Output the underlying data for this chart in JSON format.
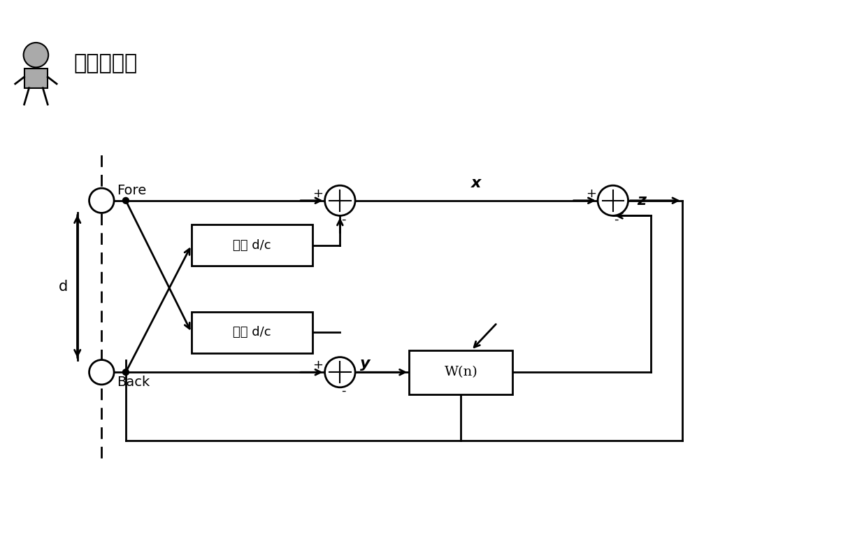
{
  "title": "目标说话人",
  "bg_color": "#ffffff",
  "line_color": "#000000",
  "box_fill": "#ffffff",
  "dashed_line_color": "#000000",
  "fore_label": "Fore",
  "back_label": "Back",
  "delay_label1": "延迟 d/c",
  "delay_label2": "延迟 d/c",
  "wn_label": "W(n)",
  "x_label": "x",
  "z_label": "z",
  "y_label": "y",
  "d_label": "d",
  "plus_label": "+",
  "minus_label": "-"
}
